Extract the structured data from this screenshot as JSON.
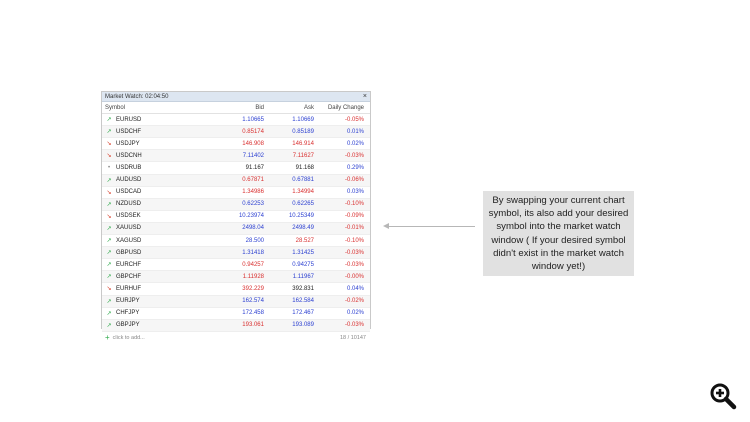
{
  "window": {
    "title": "Market Watch: 02:04:50",
    "close_label": "×"
  },
  "columns": {
    "symbol": "Symbol",
    "bid": "Bid",
    "ask": "Ask",
    "change": "Daily Change"
  },
  "rows": [
    {
      "dir": "up",
      "symbol": "EURUSD",
      "bid": "1.10665",
      "bid_dir": "pos",
      "ask": "1.10669",
      "ask_dir": "pos",
      "change": "-0.05%",
      "change_dir": "neg"
    },
    {
      "dir": "up",
      "symbol": "USDCHF",
      "bid": "0.85174",
      "bid_dir": "neg",
      "ask": "0.85189",
      "ask_dir": "pos",
      "change": "0.01%",
      "change_dir": "pos"
    },
    {
      "dir": "down",
      "symbol": "USDJPY",
      "bid": "146.908",
      "bid_dir": "neg",
      "ask": "146.914",
      "ask_dir": "neg",
      "change": "0.02%",
      "change_dir": "pos"
    },
    {
      "dir": "down",
      "symbol": "USDCNH",
      "bid": "7.11402",
      "bid_dir": "pos",
      "ask": "7.11627",
      "ask_dir": "neg",
      "change": "-0.03%",
      "change_dir": "neg"
    },
    {
      "dir": "neutral",
      "symbol": "USDRUB",
      "bid": "91.167",
      "bid_dir": "none",
      "ask": "91.168",
      "ask_dir": "none",
      "change": "0.29%",
      "change_dir": "pos"
    },
    {
      "dir": "up",
      "symbol": "AUDUSD",
      "bid": "0.67871",
      "bid_dir": "neg",
      "ask": "0.67881",
      "ask_dir": "pos",
      "change": "-0.06%",
      "change_dir": "neg"
    },
    {
      "dir": "down",
      "symbol": "USDCAD",
      "bid": "1.34986",
      "bid_dir": "neg",
      "ask": "1.34994",
      "ask_dir": "neg",
      "change": "0.03%",
      "change_dir": "pos"
    },
    {
      "dir": "up",
      "symbol": "NZDUSD",
      "bid": "0.62253",
      "bid_dir": "pos",
      "ask": "0.62265",
      "ask_dir": "pos",
      "change": "-0.10%",
      "change_dir": "neg"
    },
    {
      "dir": "down",
      "symbol": "USDSEK",
      "bid": "10.23974",
      "bid_dir": "pos",
      "ask": "10.25349",
      "ask_dir": "pos",
      "change": "-0.09%",
      "change_dir": "neg"
    },
    {
      "dir": "up",
      "symbol": "XAUUSD",
      "bid": "2498.04",
      "bid_dir": "pos",
      "ask": "2498.49",
      "ask_dir": "pos",
      "change": "-0.01%",
      "change_dir": "neg"
    },
    {
      "dir": "up",
      "symbol": "XAGUSD",
      "bid": "28.500",
      "bid_dir": "pos",
      "ask": "28.527",
      "ask_dir": "neg",
      "change": "-0.10%",
      "change_dir": "neg"
    },
    {
      "dir": "up",
      "symbol": "GBPUSD",
      "bid": "1.31418",
      "bid_dir": "pos",
      "ask": "1.31425",
      "ask_dir": "pos",
      "change": "-0.03%",
      "change_dir": "neg"
    },
    {
      "dir": "up",
      "symbol": "EURCHF",
      "bid": "0.94257",
      "bid_dir": "neg",
      "ask": "0.94275",
      "ask_dir": "pos",
      "change": "-0.03%",
      "change_dir": "neg"
    },
    {
      "dir": "up",
      "symbol": "GBPCHF",
      "bid": "1.11928",
      "bid_dir": "neg",
      "ask": "1.11967",
      "ask_dir": "pos",
      "change": "-0.00%",
      "change_dir": "neg"
    },
    {
      "dir": "down",
      "symbol": "EURHUF",
      "bid": "392.229",
      "bid_dir": "neg",
      "ask": "392.831",
      "ask_dir": "none",
      "change": "0.04%",
      "change_dir": "pos"
    },
    {
      "dir": "up",
      "symbol": "EURJPY",
      "bid": "162.574",
      "bid_dir": "pos",
      "ask": "162.584",
      "ask_dir": "pos",
      "change": "-0.02%",
      "change_dir": "neg"
    },
    {
      "dir": "up",
      "symbol": "CHFJPY",
      "bid": "172.458",
      "bid_dir": "pos",
      "ask": "172.467",
      "ask_dir": "pos",
      "change": "0.02%",
      "change_dir": "pos"
    },
    {
      "dir": "up",
      "symbol": "GBPJPY",
      "bid": "193.061",
      "bid_dir": "neg",
      "ask": "193.089",
      "ask_dir": "pos",
      "change": "-0.03%",
      "change_dir": "neg"
    }
  ],
  "footer": {
    "add_label": "click to add...",
    "count": "18 / 10147"
  },
  "callout": {
    "text": "By swapping your current chart symbol, its also add your desired symbol into the market watch window ( If your desired symbol didn't exist in the market watch window yet!)"
  },
  "icons": {
    "zoom": "zoom-in-icon"
  },
  "colors": {
    "up": "#2eaa4a",
    "down": "#d9432f",
    "positive": "#2b3fd1",
    "negative": "#d93030",
    "title_bar": "#dde6f1",
    "callout_bg": "#e1e1e1"
  }
}
